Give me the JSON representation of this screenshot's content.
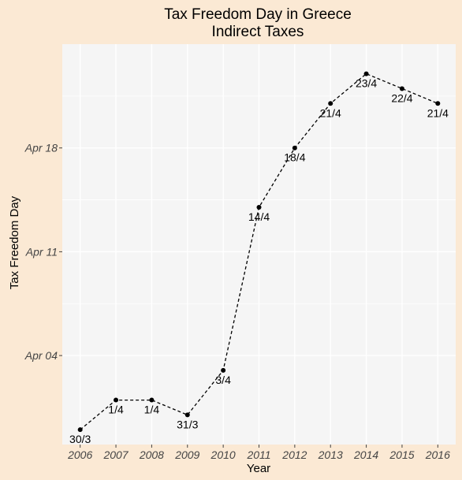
{
  "chart_data": {
    "type": "line",
    "title": "Tax Freedom Day in Greece",
    "subtitle": "Indirect Taxes",
    "xlabel": "Year",
    "ylabel": "Tax Freedom Day",
    "x": [
      2006,
      2007,
      2008,
      2009,
      2010,
      2011,
      2012,
      2013,
      2014,
      2015,
      2016
    ],
    "y": [
      "2016-03-30",
      "2016-04-01",
      "2016-04-01",
      "2016-03-31",
      "2016-04-03",
      "2016-04-14",
      "2016-04-18",
      "2016-04-21",
      "2016-04-23",
      "2016-04-22",
      "2016-04-21"
    ],
    "data_labels": [
      "30/3",
      "1/4",
      "1/4",
      "31/3",
      "3/4",
      "14/4",
      "18/4",
      "21/4",
      "23/4",
      "22/4",
      "21/4"
    ],
    "ylim": [
      "2016-03-29",
      "2016-04-25"
    ],
    "yticks": [
      {
        "date": "2016-04-04",
        "label": "Apr 04"
      },
      {
        "date": "2016-04-11",
        "label": "Apr 11"
      },
      {
        "date": "2016-04-18",
        "label": "Apr 18"
      }
    ],
    "xticks": [
      "2006",
      "2007",
      "2008",
      "2009",
      "2010",
      "2011",
      "2012",
      "2013",
      "2014",
      "2015",
      "2016"
    ],
    "line_style": "dashed",
    "colors": {
      "page_background": "#fbe9d4",
      "panel_background": "#f5f5f5",
      "grid": "#ffffff",
      "line": "#000000",
      "points": "#000000"
    },
    "grid": true,
    "legend": "none"
  }
}
